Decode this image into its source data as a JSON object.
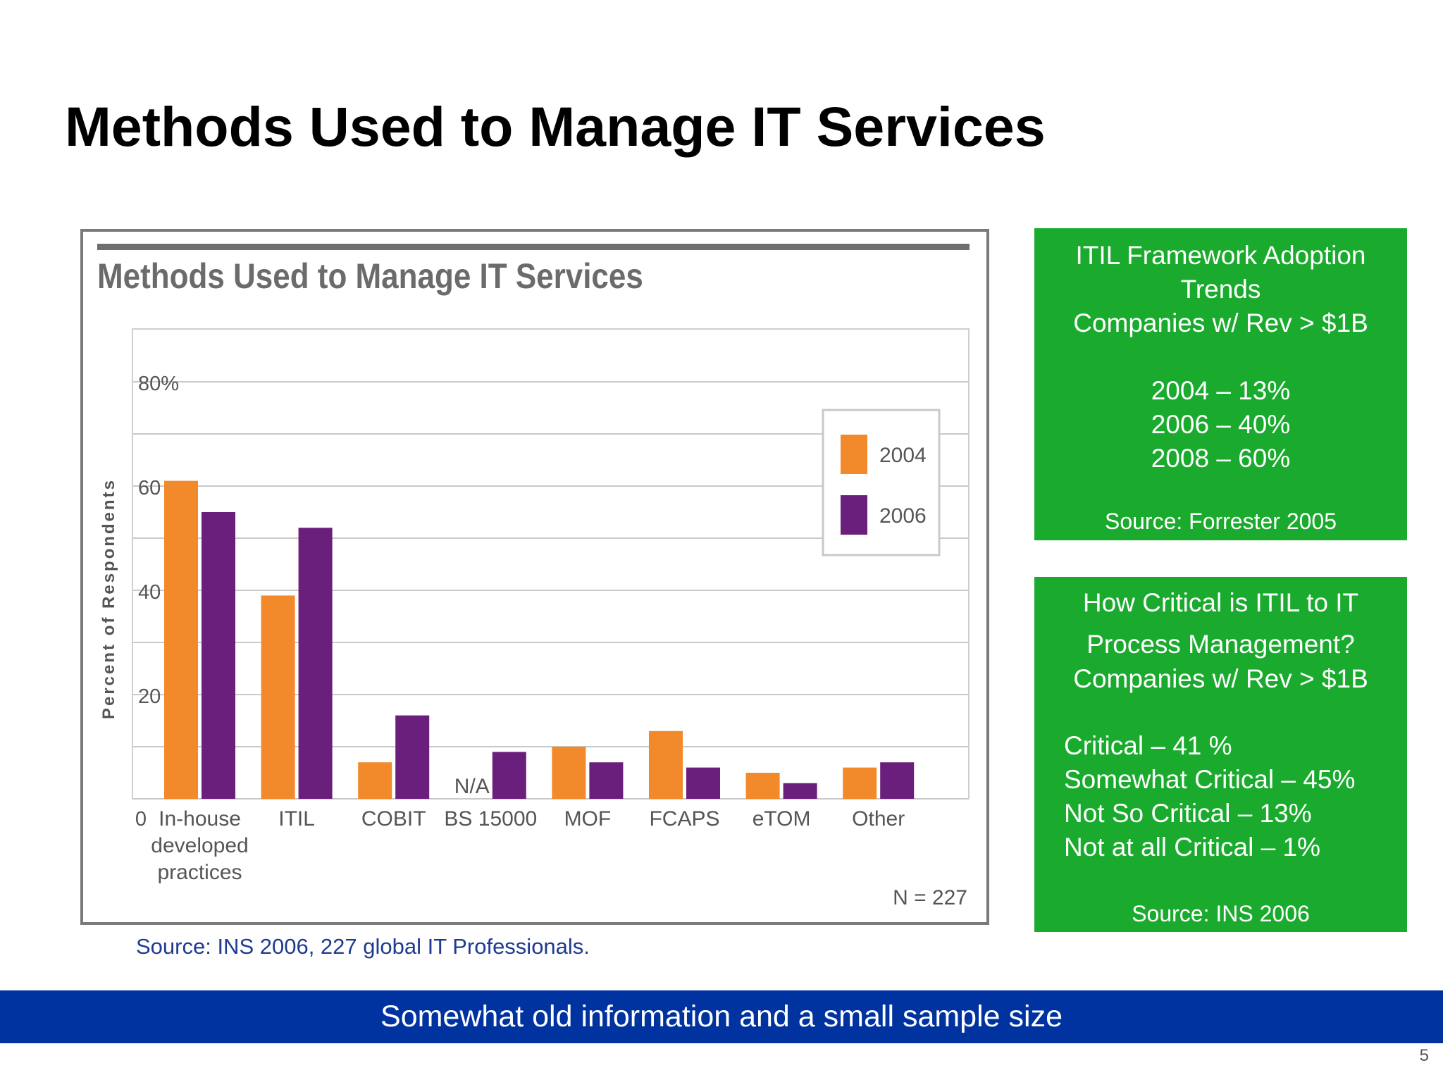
{
  "slide": {
    "title": "Methods Used to Manage IT Services",
    "source": "Source: INS 2006, 227 global IT Professionals.",
    "banner": "Somewhat old information and a small sample size",
    "page_number": "5"
  },
  "box1": {
    "lines": [
      "ITIL Framework Adoption",
      "Trends",
      "Companies w/ Rev > $1B",
      "2004 – 13%",
      "2006 – 40%",
      "2008 – 60%"
    ],
    "source": "Source: Forrester 2005"
  },
  "box2": {
    "lines": [
      "How Critical is ITIL to IT",
      "Process Management?",
      "Companies w/ Rev > $1B",
      "Critical  – 41 %",
      "Somewhat Critical – 45%",
      "Not So Critical – 13%",
      "Not at all Critical – 1%"
    ],
    "source": "Source: INS 2006"
  },
  "colors": {
    "series_2004": "#f28a2b",
    "series_2006": "#6b1f7c",
    "green_box": "#1aab2e",
    "banner": "#0033a0"
  },
  "chart_data": {
    "type": "bar",
    "title": "Methods Used to Manage IT Services",
    "ylabel": "Percent of Respondents",
    "ylim": [
      0,
      80
    ],
    "yticks": [
      "0",
      "20",
      "40",
      "60",
      "80%"
    ],
    "categories": [
      [
        "In-house",
        "developed",
        "practices"
      ],
      [
        "ITIL"
      ],
      [
        "COBIT"
      ],
      [
        "BS 15000"
      ],
      [
        "MOF"
      ],
      [
        "FCAPS"
      ],
      [
        "eTOM"
      ],
      [
        "Other"
      ]
    ],
    "series": [
      {
        "name": "2004",
        "values": [
          61,
          39,
          7,
          null,
          10,
          13,
          5,
          6
        ]
      },
      {
        "name": "2006",
        "values": [
          55,
          52,
          16,
          9,
          7,
          6,
          3,
          7
        ]
      }
    ],
    "annotations": [
      "N/A",
      "N = 227"
    ],
    "grid": true,
    "legend": "top-right"
  }
}
